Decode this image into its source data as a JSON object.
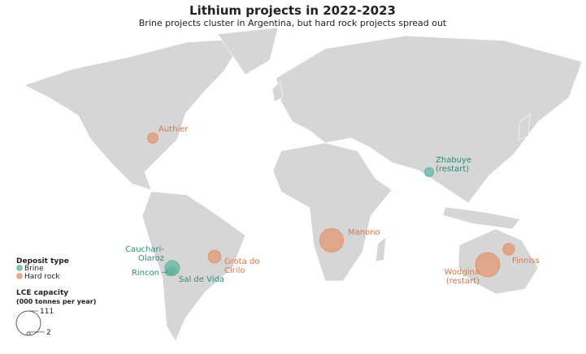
{
  "title": "Lithium projects in 2022-2023",
  "subtitle": "Brine projects cluster in Argentina, but hard rock projects spread out",
  "legend": {
    "type_title": "Deposit type",
    "types": [
      {
        "name": "Brine",
        "color": "#5fb3a3",
        "text_color": "#2f8a78"
      },
      {
        "name": "Hard rock",
        "color": "#e3936b",
        "text_color": "#d8764a"
      }
    ],
    "size_title": "LCE capacity",
    "size_subtitle": "(000 tonnes per year)",
    "sizes": [
      111,
      2
    ]
  },
  "projects": [
    {
      "label_lines": [
        "Authier"
      ],
      "type": "Hard rock",
      "capacity": 20
    },
    {
      "label_lines": [
        "Zhabuye",
        "(restart)"
      ],
      "type": "Brine",
      "capacity": 15
    },
    {
      "label_lines": [
        "Manono"
      ],
      "type": "Hard rock",
      "capacity": 105
    },
    {
      "label_lines": [
        "Wodgina",
        "(restart)"
      ],
      "type": "Hard rock",
      "capacity": 110
    },
    {
      "label_lines": [
        "Finniss"
      ],
      "type": "Hard rock",
      "capacity": 25
    },
    {
      "label_lines": [
        "Grota do",
        "Cirilo"
      ],
      "type": "Hard rock",
      "capacity": 30
    },
    {
      "label_lines": [
        "Cauchari-",
        "Olaroz"
      ],
      "type": "Brine",
      "capacity": 40
    },
    {
      "label_lines": [
        "Rincon"
      ],
      "type": "Brine",
      "capacity": 10
    },
    {
      "label_lines": [
        "Sal de Vida"
      ],
      "type": "Brine",
      "capacity": 15
    }
  ]
}
